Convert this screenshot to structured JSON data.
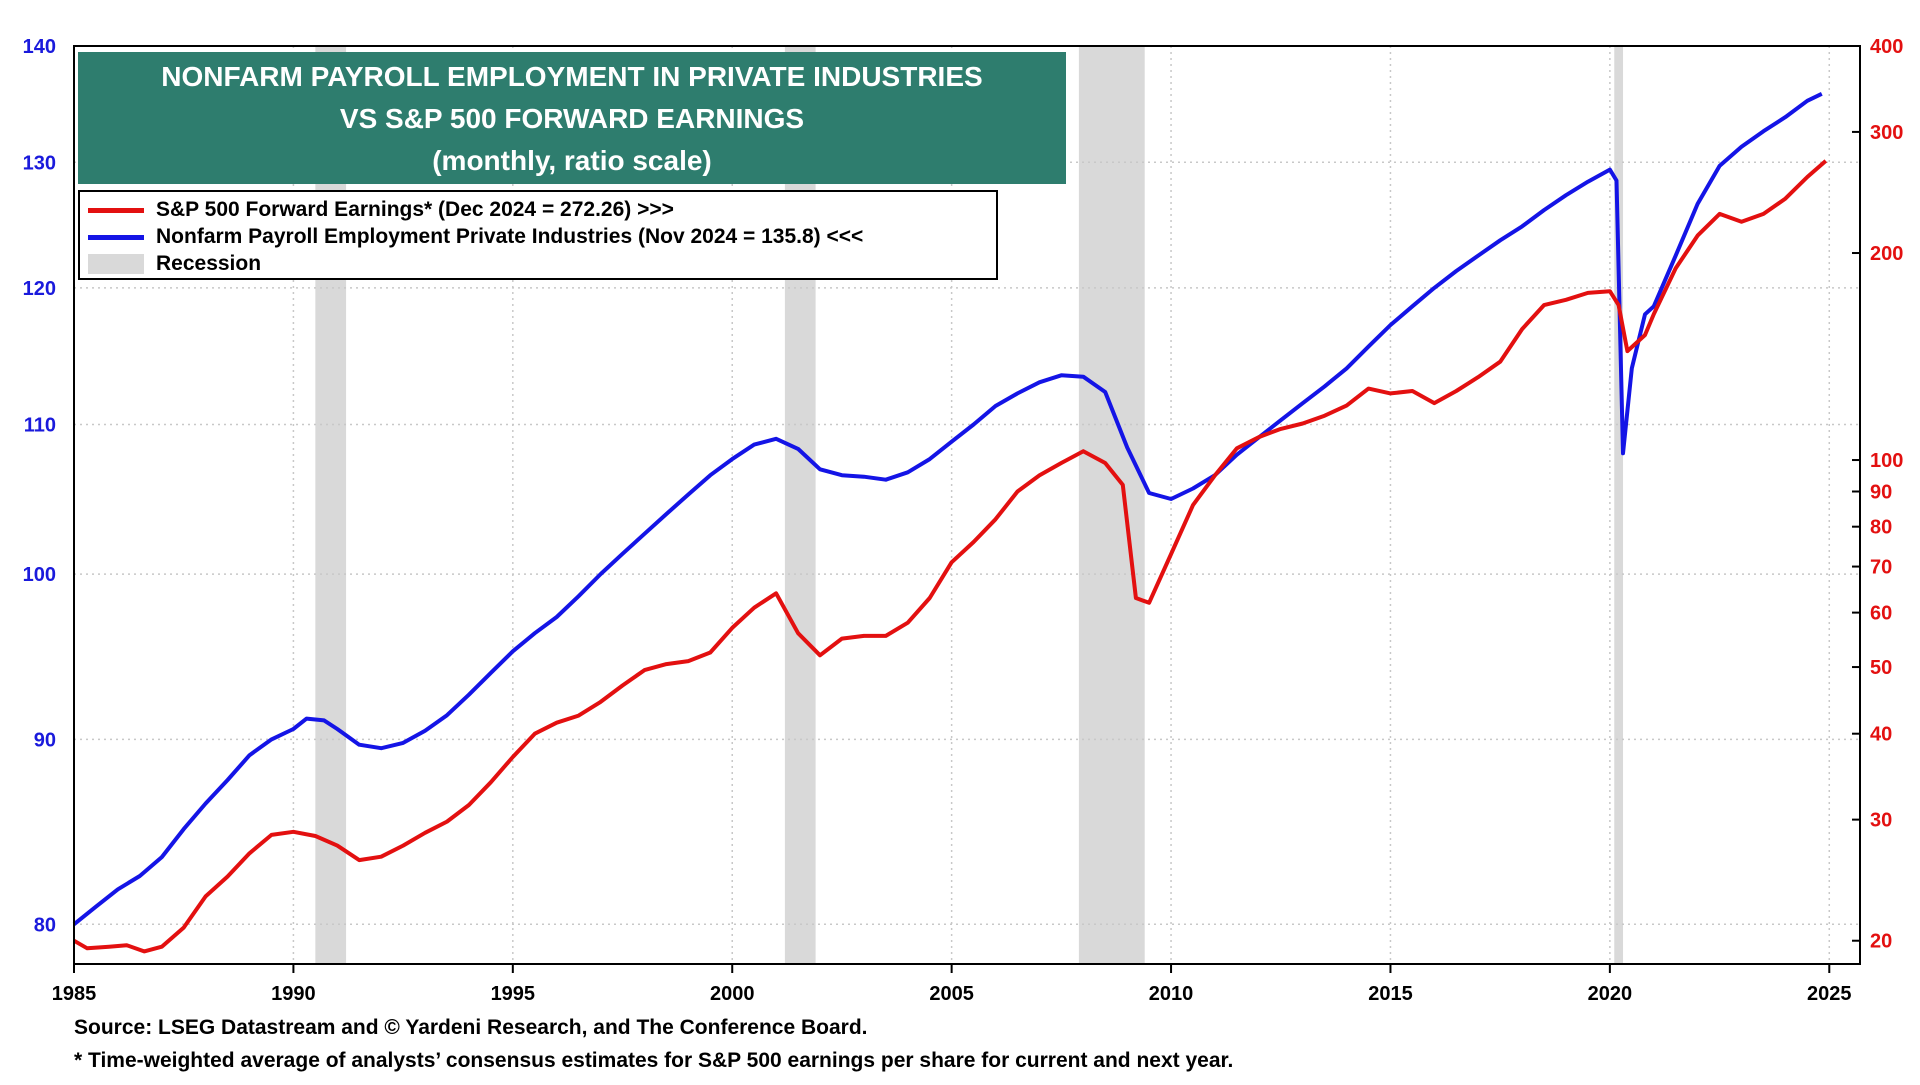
{
  "chart_data": {
    "type": "line",
    "title_lines": [
      "NONFARM PAYROLL EMPLOYMENT IN PRIVATE INDUSTRIES",
      "VS S&P 500 FORWARD EARNINGS",
      "(monthly, ratio scale)"
    ],
    "x_ticks": [
      1985,
      1990,
      1995,
      2000,
      2005,
      2010,
      2015,
      2020,
      2025
    ],
    "x_tick_labels": [
      "1985",
      "1990",
      "1995",
      "2000",
      "2005",
      "2010",
      "2015",
      "2020",
      "2025"
    ],
    "xlim": [
      1985,
      2025.7
    ],
    "left_axis": {
      "scale": "log",
      "range": [
        78,
        140
      ],
      "ticks": [
        80,
        90,
        100,
        110,
        120,
        130,
        140
      ],
      "tick_labels": [
        "80",
        "90",
        "100",
        "110",
        "120",
        "130",
        "140"
      ],
      "color": "#1a1adc"
    },
    "right_axis": {
      "scale": "log",
      "range": [
        18.5,
        400
      ],
      "ticks": [
        20,
        30,
        40,
        50,
        60,
        70,
        80,
        90,
        100,
        200,
        300,
        400
      ],
      "tick_labels": [
        "20",
        "30",
        "40",
        "50",
        "60",
        "70",
        "80",
        "90",
        "100",
        "200",
        "300",
        "400"
      ],
      "color": "#e31010"
    },
    "recessions": [
      [
        1990.5,
        1991.2
      ],
      [
        2001.2,
        2001.9
      ],
      [
        2007.9,
        2009.4
      ],
      [
        2020.1,
        2020.3
      ]
    ],
    "series": [
      {
        "name": "Nonfarm Payroll Employment Private Industries",
        "axis": "left",
        "color": "#1414e6",
        "points": [
          [
            1985.0,
            80.0
          ],
          [
            1985.5,
            80.9
          ],
          [
            1986.0,
            81.8
          ],
          [
            1986.5,
            82.5
          ],
          [
            1987.0,
            83.5
          ],
          [
            1987.5,
            85.0
          ],
          [
            1988.0,
            86.4
          ],
          [
            1988.5,
            87.7
          ],
          [
            1989.0,
            89.1
          ],
          [
            1989.5,
            90.0
          ],
          [
            1990.0,
            90.6
          ],
          [
            1990.3,
            91.2
          ],
          [
            1990.7,
            91.1
          ],
          [
            1991.0,
            90.6
          ],
          [
            1991.5,
            89.7
          ],
          [
            1992.0,
            89.5
          ],
          [
            1992.5,
            89.8
          ],
          [
            1993.0,
            90.5
          ],
          [
            1993.5,
            91.4
          ],
          [
            1994.0,
            92.6
          ],
          [
            1994.5,
            93.9
          ],
          [
            1995.0,
            95.2
          ],
          [
            1995.5,
            96.3
          ],
          [
            1996.0,
            97.3
          ],
          [
            1996.5,
            98.6
          ],
          [
            1997.0,
            100.0
          ],
          [
            1997.5,
            101.3
          ],
          [
            1998.0,
            102.6
          ],
          [
            1998.5,
            103.9
          ],
          [
            1999.0,
            105.2
          ],
          [
            1999.5,
            106.5
          ],
          [
            2000.0,
            107.6
          ],
          [
            2000.5,
            108.6
          ],
          [
            2001.0,
            109.0
          ],
          [
            2001.5,
            108.3
          ],
          [
            2002.0,
            106.9
          ],
          [
            2002.5,
            106.5
          ],
          [
            2003.0,
            106.4
          ],
          [
            2003.5,
            106.2
          ],
          [
            2004.0,
            106.7
          ],
          [
            2004.5,
            107.6
          ],
          [
            2005.0,
            108.8
          ],
          [
            2005.5,
            110.0
          ],
          [
            2006.0,
            111.3
          ],
          [
            2006.5,
            112.2
          ],
          [
            2007.0,
            113.0
          ],
          [
            2007.5,
            113.5
          ],
          [
            2008.0,
            113.4
          ],
          [
            2008.5,
            112.3
          ],
          [
            2009.0,
            108.4
          ],
          [
            2009.5,
            105.3
          ],
          [
            2010.0,
            104.9
          ],
          [
            2010.5,
            105.6
          ],
          [
            2011.0,
            106.5
          ],
          [
            2011.5,
            107.9
          ],
          [
            2012.0,
            109.1
          ],
          [
            2012.5,
            110.3
          ],
          [
            2013.0,
            111.5
          ],
          [
            2013.5,
            112.7
          ],
          [
            2014.0,
            114.0
          ],
          [
            2014.5,
            115.6
          ],
          [
            2015.0,
            117.2
          ],
          [
            2015.5,
            118.6
          ],
          [
            2016.0,
            120.0
          ],
          [
            2016.5,
            121.3
          ],
          [
            2017.0,
            122.5
          ],
          [
            2017.5,
            123.7
          ],
          [
            2018.0,
            124.8
          ],
          [
            2018.5,
            126.1
          ],
          [
            2019.0,
            127.3
          ],
          [
            2019.5,
            128.4
          ],
          [
            2020.0,
            129.4
          ],
          [
            2020.15,
            128.5
          ],
          [
            2020.3,
            108.0
          ],
          [
            2020.5,
            114.0
          ],
          [
            2020.8,
            118.0
          ],
          [
            2021.0,
            118.6
          ],
          [
            2021.5,
            122.5
          ],
          [
            2022.0,
            126.6
          ],
          [
            2022.5,
            129.7
          ],
          [
            2023.0,
            131.3
          ],
          [
            2023.5,
            132.6
          ],
          [
            2024.0,
            133.8
          ],
          [
            2024.5,
            135.2
          ],
          [
            2024.83,
            135.8
          ]
        ]
      },
      {
        "name": "S&P 500 Forward Earnings",
        "axis": "right",
        "color": "#e31010",
        "points": [
          [
            1985.0,
            20.0
          ],
          [
            1985.3,
            19.5
          ],
          [
            1985.8,
            19.6
          ],
          [
            1986.2,
            19.7
          ],
          [
            1986.6,
            19.3
          ],
          [
            1987.0,
            19.6
          ],
          [
            1987.5,
            20.9
          ],
          [
            1988.0,
            23.2
          ],
          [
            1988.5,
            24.8
          ],
          [
            1989.0,
            26.8
          ],
          [
            1989.5,
            28.5
          ],
          [
            1990.0,
            28.8
          ],
          [
            1990.5,
            28.4
          ],
          [
            1991.0,
            27.5
          ],
          [
            1991.5,
            26.2
          ],
          [
            1992.0,
            26.5
          ],
          [
            1992.5,
            27.5
          ],
          [
            1993.0,
            28.7
          ],
          [
            1993.5,
            29.8
          ],
          [
            1994.0,
            31.5
          ],
          [
            1994.5,
            34.0
          ],
          [
            1995.0,
            37.0
          ],
          [
            1995.5,
            40.0
          ],
          [
            1996.0,
            41.5
          ],
          [
            1996.5,
            42.5
          ],
          [
            1997.0,
            44.5
          ],
          [
            1997.5,
            47.0
          ],
          [
            1998.0,
            49.5
          ],
          [
            1998.5,
            50.5
          ],
          [
            1999.0,
            51.0
          ],
          [
            1999.5,
            52.5
          ],
          [
            2000.0,
            57.0
          ],
          [
            2000.5,
            61.0
          ],
          [
            2001.0,
            64.0
          ],
          [
            2001.5,
            56.0
          ],
          [
            2002.0,
            52.0
          ],
          [
            2002.5,
            55.0
          ],
          [
            2003.0,
            55.5
          ],
          [
            2003.5,
            55.5
          ],
          [
            2004.0,
            58.0
          ],
          [
            2004.5,
            63.0
          ],
          [
            2005.0,
            71.0
          ],
          [
            2005.5,
            76.0
          ],
          [
            2006.0,
            82.0
          ],
          [
            2006.5,
            90.0
          ],
          [
            2007.0,
            95.0
          ],
          [
            2007.5,
            99.0
          ],
          [
            2008.0,
            103.0
          ],
          [
            2008.5,
            99.0
          ],
          [
            2008.9,
            92.0
          ],
          [
            2009.2,
            63.0
          ],
          [
            2009.5,
            62.0
          ],
          [
            2010.0,
            73.0
          ],
          [
            2010.5,
            86.0
          ],
          [
            2011.0,
            95.0
          ],
          [
            2011.5,
            104.0
          ],
          [
            2012.0,
            108.0
          ],
          [
            2012.5,
            111.0
          ],
          [
            2013.0,
            113.0
          ],
          [
            2013.5,
            116.0
          ],
          [
            2014.0,
            120.0
          ],
          [
            2014.5,
            127.0
          ],
          [
            2015.0,
            125.0
          ],
          [
            2015.5,
            126.0
          ],
          [
            2016.0,
            121.0
          ],
          [
            2016.5,
            126.0
          ],
          [
            2017.0,
            132.0
          ],
          [
            2017.5,
            139.0
          ],
          [
            2018.0,
            155.0
          ],
          [
            2018.5,
            168.0
          ],
          [
            2019.0,
            171.0
          ],
          [
            2019.5,
            175.0
          ],
          [
            2020.0,
            176.0
          ],
          [
            2020.2,
            168.0
          ],
          [
            2020.4,
            144.0
          ],
          [
            2020.8,
            152.0
          ],
          [
            2021.0,
            163.0
          ],
          [
            2021.5,
            190.0
          ],
          [
            2022.0,
            212.0
          ],
          [
            2022.5,
            228.0
          ],
          [
            2023.0,
            222.0
          ],
          [
            2023.5,
            228.0
          ],
          [
            2024.0,
            240.0
          ],
          [
            2024.5,
            258.0
          ],
          [
            2024.92,
            272.26
          ]
        ]
      },
      {
        "name": "Recession",
        "axis": "none",
        "color": "#d9d9d9"
      }
    ]
  },
  "legend": [
    {
      "label": "S&P 500 Forward Earnings*  (Dec 2024 = 272.26) >>>",
      "color": "#e31010",
      "kind": "line"
    },
    {
      "label": "Nonfarm Payroll Employment Private Industries (Nov 2024 = 135.8) <<<",
      "color": "#1414e6",
      "kind": "line"
    },
    {
      "label": "Recession",
      "color": "#d9d9d9",
      "kind": "rect"
    }
  ],
  "footnotes": [
    "Source: LSEG Datastream and © Yardeni Research, and The Conference Board.",
    "* Time-weighted average of analysts’ consensus estimates for S&P 500 earnings per share for current and next year."
  ]
}
